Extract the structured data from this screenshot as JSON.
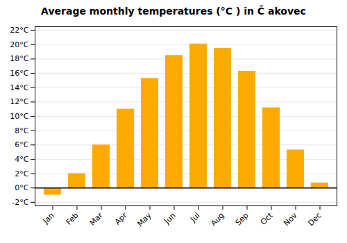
{
  "chart_data": {
    "type": "bar",
    "title": "Average monthly temperatures (°C ) in Č akovec",
    "categories": [
      "Jan",
      "Feb",
      "Mar",
      "Apr",
      "May",
      "Jun",
      "Jul",
      "Aug",
      "Sep",
      "Oct",
      "Nov",
      "Dec"
    ],
    "values": [
      -1.0,
      2.0,
      6.0,
      11.0,
      15.3,
      18.5,
      20.1,
      19.5,
      16.3,
      11.2,
      5.3,
      0.7
    ],
    "color": "#FFAA00",
    "ylim": [
      -2.5,
      22.5
    ],
    "yticks": [
      {
        "value": -2,
        "label": "-2°C"
      },
      {
        "value": 0,
        "label": "0°C"
      },
      {
        "value": 2,
        "label": "2°C"
      },
      {
        "value": 4,
        "label": "4°C"
      },
      {
        "value": 6,
        "label": "6°C"
      },
      {
        "value": 8,
        "label": "8°C"
      },
      {
        "value": 10,
        "label": "10°C"
      },
      {
        "value": 12,
        "label": "12°C"
      },
      {
        "value": 14,
        "label": "14°C"
      },
      {
        "value": 16,
        "label": "16°C"
      },
      {
        "value": 18,
        "label": "18°C"
      },
      {
        "value": 20,
        "label": "20°C"
      },
      {
        "value": 22,
        "label": "22°C"
      }
    ],
    "grid": true
  }
}
